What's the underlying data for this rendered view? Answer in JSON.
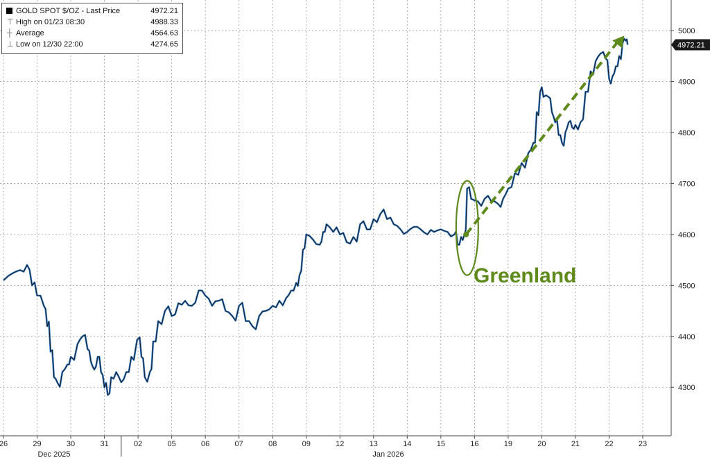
{
  "legend": {
    "title": "GOLD SPOT $/OZ - Last Price",
    "last_price": "4972.21",
    "high_label": "High on 01/23 08:30",
    "high_value": "4988.33",
    "avg_label": "Average",
    "avg_value": "4564.63",
    "low_label": "Low on 12/30 22:00",
    "low_value": "4274.65"
  },
  "annotation": {
    "text": "Greenland",
    "color": "#5e8a1c"
  },
  "colors": {
    "line": "#1a1a1a",
    "highlight": "#2e78c8",
    "grid": "#9a9a9a",
    "tag_bg": "#1a1a1a"
  },
  "chart_data": {
    "type": "line",
    "series": [],
    "x_tick_labels": [
      "26",
      "29",
      "30",
      "31",
      "02",
      "05",
      "06",
      "07",
      "08",
      "09",
      "12",
      "13",
      "14",
      "15",
      "16",
      "19",
      "20",
      "21",
      "22",
      "23"
    ],
    "month_labels": [
      "Dec 2025",
      "Jan 2026"
    ],
    "y_ticks": [
      4300,
      4400,
      4500,
      4600,
      4700,
      4800,
      4900,
      5000
    ],
    "ylim": [
      4205,
      5060
    ],
    "last_value": 4972.21,
    "points": [
      [
        0,
        4510
      ],
      [
        0.3,
        4525
      ],
      [
        0.5,
        4530
      ],
      [
        0.7,
        4540
      ],
      [
        0.85,
        4500
      ],
      [
        1.0,
        4480
      ],
      [
        1.2,
        4460
      ],
      [
        1.3,
        4420
      ],
      [
        1.4,
        4370
      ],
      [
        1.5,
        4320
      ],
      [
        1.6,
        4310
      ],
      [
        1.75,
        4330
      ],
      [
        1.9,
        4345
      ],
      [
        2.0,
        4360
      ],
      [
        2.2,
        4385
      ],
      [
        2.35,
        4400
      ],
      [
        2.5,
        4375
      ],
      [
        2.6,
        4350
      ],
      [
        2.7,
        4335
      ],
      [
        2.8,
        4360
      ],
      [
        2.9,
        4330
      ],
      [
        3.0,
        4300
      ],
      [
        3.1,
        4285
      ],
      [
        3.2,
        4320
      ],
      [
        3.35,
        4330
      ],
      [
        3.5,
        4310
      ],
      [
        3.65,
        4330
      ],
      [
        3.8,
        4360
      ],
      [
        3.95,
        4385
      ],
      [
        4.0,
        4395
      ],
      [
        4.1,
        4360
      ],
      [
        4.2,
        4320
      ],
      [
        4.35,
        4330
      ],
      [
        4.45,
        4390
      ],
      [
        4.6,
        4430
      ],
      [
        4.8,
        4450
      ],
      [
        5.0,
        4440
      ],
      [
        5.2,
        4465
      ],
      [
        5.4,
        4470
      ],
      [
        5.6,
        4460
      ],
      [
        5.8,
        4490
      ],
      [
        6.0,
        4480
      ],
      [
        6.2,
        4460
      ],
      [
        6.4,
        4470
      ],
      [
        6.6,
        4450
      ],
      [
        6.8,
        4440
      ],
      [
        7.0,
        4460
      ],
      [
        7.2,
        4430
      ],
      [
        7.4,
        4420
      ],
      [
        7.6,
        4440
      ],
      [
        7.8,
        4450
      ],
      [
        8.0,
        4460
      ],
      [
        8.2,
        4470
      ],
      [
        8.4,
        4475
      ],
      [
        8.55,
        4490
      ],
      [
        8.7,
        4505
      ],
      [
        8.8,
        4520
      ],
      [
        8.9,
        4570
      ],
      [
        9.0,
        4600
      ],
      [
        9.2,
        4590
      ],
      [
        9.4,
        4580
      ],
      [
        9.5,
        4605
      ],
      [
        9.6,
        4620
      ],
      [
        9.8,
        4605
      ],
      [
        10.0,
        4600
      ],
      [
        10.2,
        4585
      ],
      [
        10.4,
        4595
      ],
      [
        10.6,
        4620
      ],
      [
        10.8,
        4610
      ],
      [
        11.0,
        4630
      ],
      [
        11.2,
        4640
      ],
      [
        11.4,
        4630
      ],
      [
        11.6,
        4620
      ],
      [
        11.8,
        4610
      ],
      [
        12.0,
        4605
      ],
      [
        12.2,
        4615
      ],
      [
        12.4,
        4610
      ],
      [
        12.6,
        4600
      ],
      [
        12.8,
        4605
      ],
      [
        13.0,
        4610
      ],
      [
        13.2,
        4605
      ],
      [
        13.4,
        4600
      ],
      [
        13.5,
        4580
      ],
      [
        13.6,
        4595
      ],
      [
        13.7,
        4600
      ],
      [
        13.78,
        4690
      ],
      [
        13.9,
        4670
      ],
      [
        14.1,
        4665
      ],
      [
        14.3,
        4670
      ],
      [
        14.5,
        4665
      ],
      [
        14.7,
        4660
      ],
      [
        14.85,
        4670
      ],
      [
        15.0,
        4690
      ],
      [
        15.2,
        4720
      ],
      [
        15.4,
        4740
      ],
      [
        15.6,
        4760
      ],
      [
        15.75,
        4780
      ],
      [
        15.85,
        4840
      ],
      [
        15.95,
        4880
      ],
      [
        16.05,
        4870
      ],
      [
        16.2,
        4870
      ],
      [
        16.3,
        4840
      ],
      [
        16.4,
        4820
      ],
      [
        16.5,
        4795
      ],
      [
        16.6,
        4780
      ],
      [
        16.7,
        4800
      ],
      [
        16.8,
        4820
      ],
      [
        16.9,
        4810
      ],
      [
        17.0,
        4815
      ],
      [
        17.15,
        4820
      ],
      [
        17.3,
        4880
      ],
      [
        17.45,
        4920
      ],
      [
        17.6,
        4940
      ],
      [
        17.75,
        4955
      ],
      [
        17.9,
        4945
      ],
      [
        18.0,
        4905
      ],
      [
        18.1,
        4910
      ],
      [
        18.2,
        4930
      ],
      [
        18.3,
        4950
      ],
      [
        18.4,
        4975
      ],
      [
        18.5,
        4980
      ],
      [
        18.55,
        4972.21
      ]
    ]
  }
}
